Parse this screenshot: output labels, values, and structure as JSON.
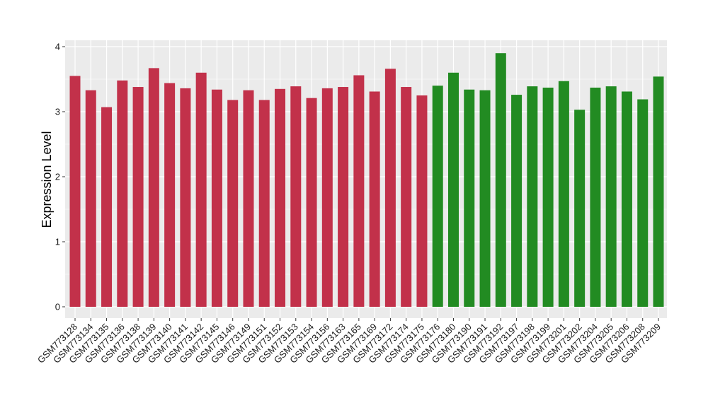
{
  "chart_data": {
    "type": "bar",
    "title": "",
    "xlabel": "",
    "ylabel": "Expression Level",
    "ylim": [
      0,
      4
    ],
    "yticks": [
      0,
      1,
      2,
      3,
      4
    ],
    "grid": true,
    "panel_background": "#EBEBEB",
    "grid_color": "#FFFFFF",
    "categories": [
      "GSM773128",
      "GSM773134",
      "GSM773135",
      "GSM773136",
      "GSM773138",
      "GSM773139",
      "GSM773140",
      "GSM773141",
      "GSM773142",
      "GSM773145",
      "GSM773146",
      "GSM773149",
      "GSM773151",
      "GSM773152",
      "GSM773153",
      "GSM773154",
      "GSM773156",
      "GSM773163",
      "GSM773165",
      "GSM773169",
      "GSM773172",
      "GSM773174",
      "GSM773175",
      "GSM773176",
      "GSM773180",
      "GSM773190",
      "GSM773191",
      "GSM773192",
      "GSM773197",
      "GSM773198",
      "GSM773199",
      "GSM773201",
      "GSM773202",
      "GSM773204",
      "GSM773205",
      "GSM773206",
      "GSM773208",
      "GSM773209"
    ],
    "values": [
      3.55,
      3.33,
      3.07,
      3.48,
      3.38,
      3.67,
      3.44,
      3.36,
      3.6,
      3.34,
      3.18,
      3.33,
      3.18,
      3.35,
      3.39,
      3.21,
      3.36,
      3.38,
      3.56,
      3.31,
      3.66,
      3.38,
      3.25,
      3.4,
      3.6,
      3.34,
      3.33,
      3.9,
      3.26,
      3.39,
      3.37,
      3.47,
      3.03,
      3.37,
      3.39,
      3.31,
      3.19,
      3.54
    ],
    "bar_colors": [
      "#C2314A",
      "#C2314A",
      "#C2314A",
      "#C2314A",
      "#C2314A",
      "#C2314A",
      "#C2314A",
      "#C2314A",
      "#C2314A",
      "#C2314A",
      "#C2314A",
      "#C2314A",
      "#C2314A",
      "#C2314A",
      "#C2314A",
      "#C2314A",
      "#C2314A",
      "#C2314A",
      "#C2314A",
      "#C2314A",
      "#C2314A",
      "#C2314A",
      "#C2314A",
      "#228B22",
      "#228B22",
      "#228B22",
      "#228B22",
      "#228B22",
      "#228B22",
      "#228B22",
      "#228B22",
      "#228B22",
      "#228B22",
      "#228B22",
      "#228B22",
      "#228B22",
      "#228B22",
      "#228B22"
    ]
  }
}
